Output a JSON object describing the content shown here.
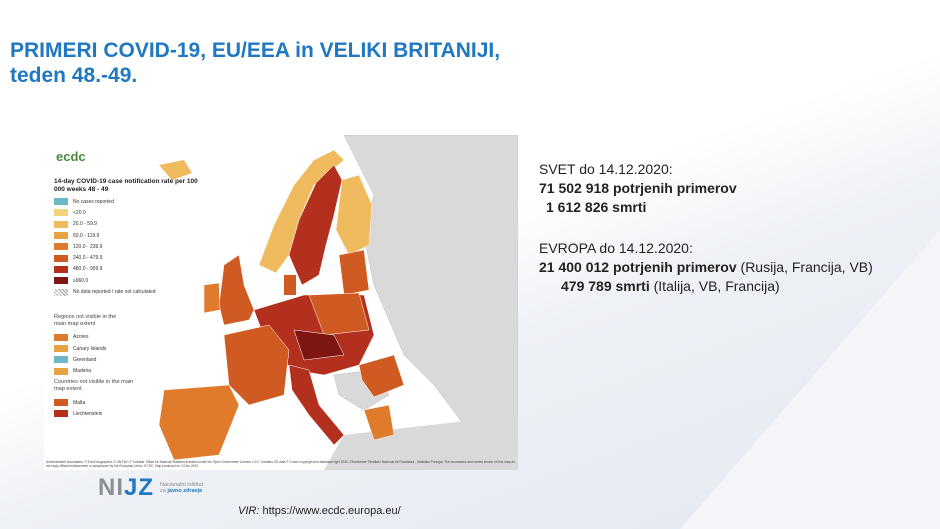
{
  "slide": {
    "title_line1": "PRIMERI COVID-19, EU/EEA in VELIKI BRITANIJI,",
    "title_line2": "teden 48.-49."
  },
  "map": {
    "logo_text": "ecdc",
    "legend_title": "14-day COVID-19 case notification rate per 100 000 weeks 48 - 49",
    "legend_items": [
      {
        "label": "No cases reported",
        "color": "#6fb7c8"
      },
      {
        "label": "<20.0",
        "color": "#f3d37e"
      },
      {
        "label": "20.0 - 59.9",
        "color": "#efbb5e"
      },
      {
        "label": "60.0 - 119.9",
        "color": "#e9a042"
      },
      {
        "label": "120.0 - 239.9",
        "color": "#e07b2c"
      },
      {
        "label": "240.0 - 479.9",
        "color": "#cf5a22"
      },
      {
        "label": "480.0 - 959.9",
        "color": "#b4301e"
      },
      {
        "label": "≥960.0",
        "color": "#7d1512"
      },
      {
        "label": "No data reported / rate not calculated",
        "color": "hatch"
      }
    ],
    "regions_title": "Regions not visible in the main map extent",
    "regions": [
      {
        "label": "Azores",
        "color": "#e07b2c"
      },
      {
        "label": "Canary Islands",
        "color": "#e9a042"
      },
      {
        "label": "Greenland",
        "color": "#6fb7c8"
      },
      {
        "label": "Madeira",
        "color": "#e9a042"
      }
    ],
    "countries_title": "Countries not visible in the main map extent",
    "countries": [
      {
        "label": "Malta",
        "color": "#cf5a22"
      },
      {
        "label": "Liechtenstein",
        "color": "#b4301e"
      }
    ],
    "attribution": "Administrative boundaries: © EuroGeographics © UN-FAO © Turkstat. Office for National Statistics licensed under the Open Government Licence v.3.0. Contains OS data © Crown copyright and database right 2020. ©Kartverket ©Instituto Nacional de Estatística - Statistics Portugal. The boundaries and names shown on this map do not imply official endorsement or acceptance by the European Union. ECDC. Map produced on: 9 Dec 2020"
  },
  "stats": {
    "world_heading": "SVET do 14.12.2020:",
    "world_cases": "71 502 918 potrjenih primerov",
    "world_deaths": "1 612 826 smrti",
    "europe_heading": "EVROPA do 14.12.2020:",
    "europe_cases": "21 400 012 potrjenih primerov",
    "europe_cases_note": " (Rusija, Francija, VB)",
    "europe_deaths": "479 789 smrti",
    "europe_deaths_note": " (Italija, VB, Francija)"
  },
  "footer": {
    "logo_text_gray": "NI",
    "logo_text_blue": "JZ",
    "logo_sub1": "Nacionalni inštitut",
    "logo_sub2_prefix": "za ",
    "logo_sub2": "javno zdravje",
    "source_label": "VIR:",
    "source_url": "https://www.ecdc.europa.eu/"
  }
}
